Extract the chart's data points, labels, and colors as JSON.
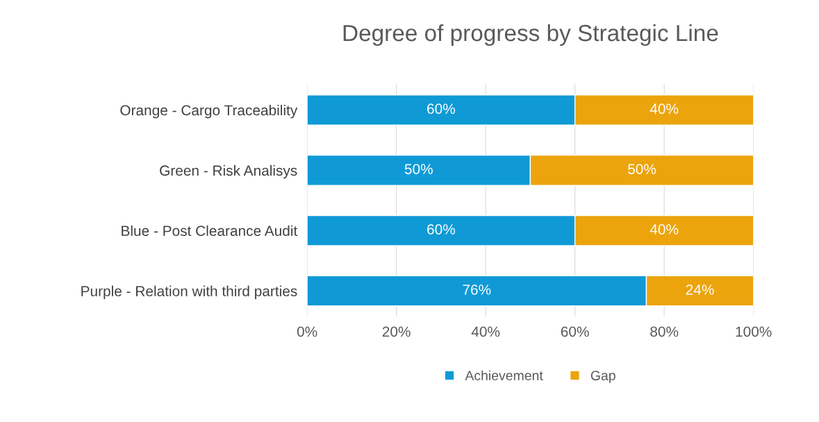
{
  "chart_data": {
    "type": "bar",
    "orientation": "horizontal",
    "stacked": true,
    "title": "Degree of progress by Strategic Line",
    "categories": [
      "Orange - Cargo Traceability",
      "Green - Risk Analisys",
      "Blue - Post Clearance Audit",
      "Purple - Relation with third parties"
    ],
    "series": [
      {
        "name": "Achievement",
        "color": "#0f9ad6",
        "values": [
          60,
          50,
          60,
          76
        ],
        "value_labels": [
          "60%",
          "50%",
          "60%",
          "76%"
        ]
      },
      {
        "name": "Gap",
        "color": "#eca40d",
        "values": [
          40,
          50,
          40,
          24
        ],
        "value_labels": [
          "40%",
          "50%",
          "40%",
          "24%"
        ]
      }
    ],
    "xlim": [
      0,
      100
    ],
    "xticks": [
      {
        "value": 0,
        "label": "0%"
      },
      {
        "value": 20,
        "label": "20%"
      },
      {
        "value": 40,
        "label": "40%"
      },
      {
        "value": 60,
        "label": "60%"
      },
      {
        "value": 80,
        "label": "80%"
      },
      {
        "value": 100,
        "label": "100%"
      }
    ],
    "grid": "x",
    "legend": "bottom"
  }
}
